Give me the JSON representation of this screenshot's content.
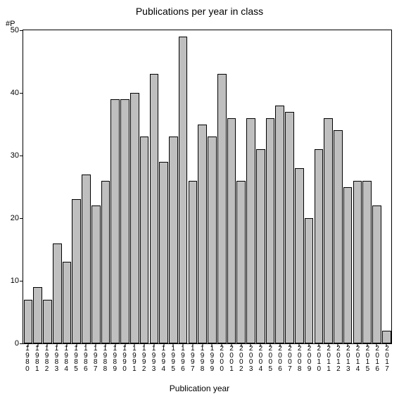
{
  "chart": {
    "type": "bar",
    "title": "Publications per year in class",
    "title_fontsize": 14,
    "y_axis_unit": "#P",
    "x_axis_title": "Publication year",
    "ylim": [
      0,
      50
    ],
    "ytick_step": 10,
    "yticks": [
      0,
      10,
      20,
      30,
      40,
      50
    ],
    "background_color": "#ffffff",
    "bar_fill_color": "#bfbfbf",
    "bar_border_color": "#000000",
    "axis_color": "#000000",
    "label_fontsize": 11,
    "xlabel_fontsize": 10,
    "bar_width": 0.92,
    "categories": [
      "1980",
      "1981",
      "1982",
      "1983",
      "1984",
      "1985",
      "1986",
      "1987",
      "1988",
      "1989",
      "1990",
      "1991",
      "1992",
      "1993",
      "1994",
      "1995",
      "1996",
      "1997",
      "1998",
      "1999",
      "2000",
      "2001",
      "2002",
      "2003",
      "2004",
      "2005",
      "2006",
      "2007",
      "2008",
      "2009",
      "2010",
      "2011",
      "2012",
      "2013",
      "2014",
      "2015",
      "2016",
      "2017"
    ],
    "values": [
      7,
      9,
      7,
      16,
      13,
      23,
      27,
      22,
      26,
      39,
      39,
      40,
      33,
      43,
      29,
      33,
      49,
      26,
      35,
      33,
      43,
      36,
      26,
      36,
      31,
      36,
      38,
      37,
      28,
      20,
      31,
      36,
      34,
      25,
      26,
      26,
      22,
      2
    ]
  }
}
